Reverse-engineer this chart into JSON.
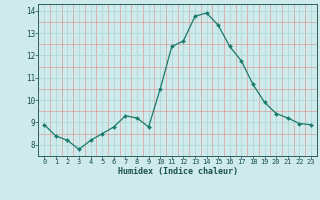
{
  "x": [
    0,
    1,
    2,
    3,
    4,
    5,
    6,
    7,
    8,
    9,
    10,
    11,
    12,
    13,
    14,
    15,
    16,
    17,
    18,
    19,
    20,
    21,
    22,
    23
  ],
  "y": [
    8.9,
    8.4,
    8.2,
    7.8,
    8.2,
    8.5,
    8.8,
    9.3,
    9.2,
    8.8,
    10.5,
    12.4,
    12.65,
    13.75,
    13.9,
    13.35,
    12.4,
    11.75,
    10.7,
    9.9,
    9.4,
    9.2,
    8.95,
    8.9
  ],
  "line_color": "#1a7a6e",
  "marker_color": "#1a7a6e",
  "bg_color": "#ceeaea",
  "grid_major_color": "#b0d8d8",
  "grid_minor_color": "#e08888",
  "xlabel": "Humidex (Indice chaleur)",
  "ylim": [
    7.5,
    14.3
  ],
  "xlim": [
    -0.5,
    23.5
  ],
  "yticks": [
    8,
    9,
    10,
    11,
    12,
    13,
    14
  ],
  "xticks": [
    0,
    1,
    2,
    3,
    4,
    5,
    6,
    7,
    8,
    9,
    10,
    11,
    12,
    13,
    14,
    15,
    16,
    17,
    18,
    19,
    20,
    21,
    22,
    23
  ]
}
